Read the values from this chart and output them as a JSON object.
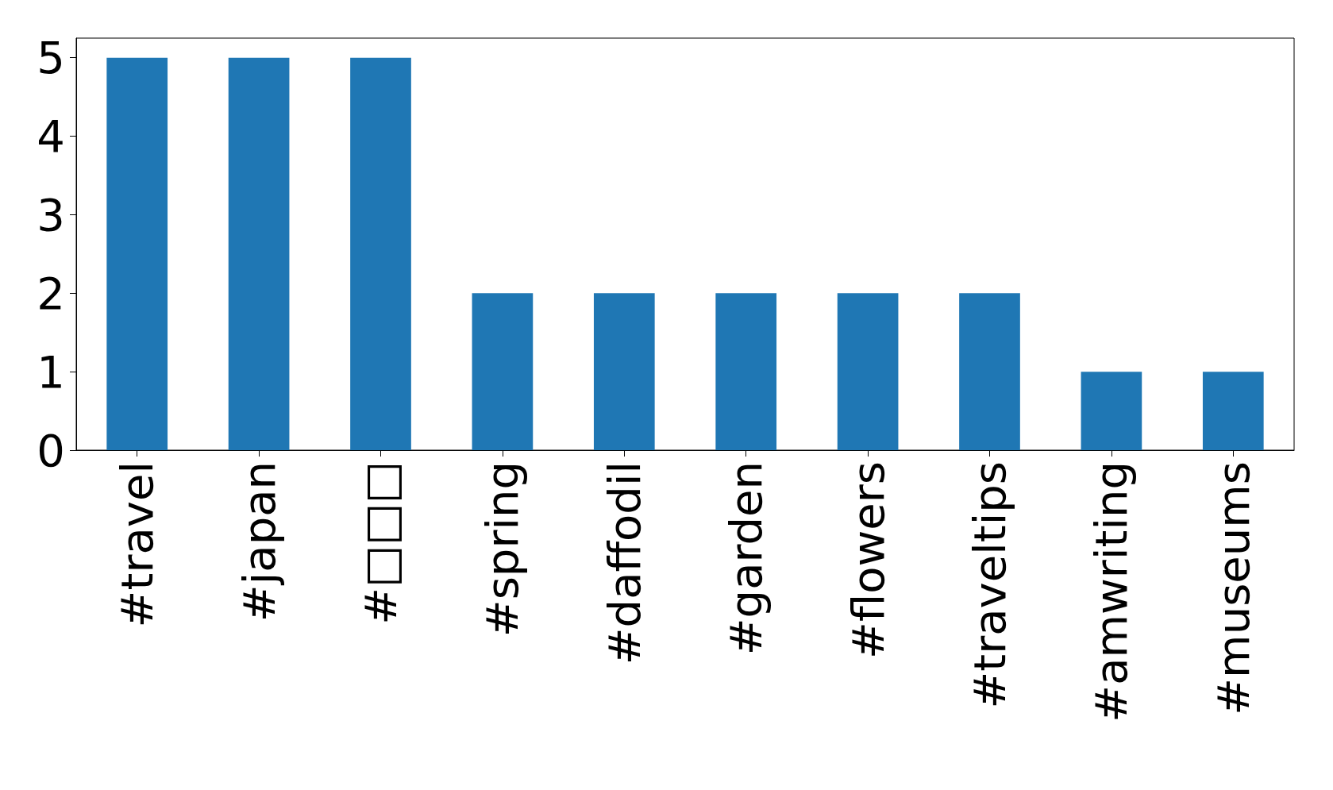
{
  "chart_data": {
    "type": "bar",
    "categories": [
      "#travel",
      "#japan",
      "#□□□",
      "#spring",
      "#daffodil",
      "#garden",
      "#flowers",
      "#traveltips",
      "#amwriting",
      "#museums"
    ],
    "values": [
      5,
      5,
      5,
      2,
      2,
      2,
      2,
      2,
      1,
      1
    ],
    "color": "#1f77b4",
    "ylim": [
      0,
      5.25
    ],
    "yticks": [
      0,
      1,
      2,
      3,
      4,
      5
    ],
    "grid": false
  }
}
